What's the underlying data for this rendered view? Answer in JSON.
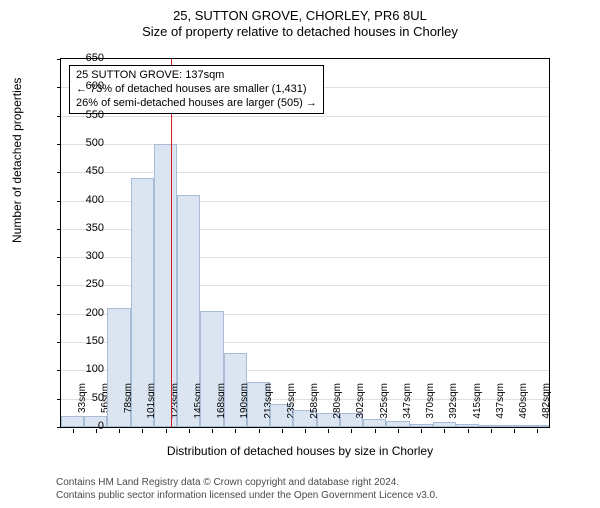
{
  "header": {
    "address": "25, SUTTON GROVE, CHORLEY, PR6 8UL",
    "subtitle": "Size of property relative to detached houses in Chorley"
  },
  "axes": {
    "ylabel": "Number of detached properties",
    "xlabel": "Distribution of detached houses by size in Chorley",
    "ymin": 0,
    "ymax": 650,
    "ytick_step": 50,
    "label_fontsize": 12,
    "tick_fontsize": 11
  },
  "chart": {
    "type": "histogram",
    "background_color": "#ffffff",
    "grid_color": "#e0e0e0",
    "bar_fill": "#dbe5f1",
    "bar_border": "#a8bdd5",
    "axis_color": "#000000",
    "categories": [
      "33sqm",
      "56sqm",
      "78sqm",
      "101sqm",
      "123sqm",
      "145sqm",
      "168sqm",
      "190sqm",
      "213sqm",
      "235sqm",
      "258sqm",
      "280sqm",
      "302sqm",
      "325sqm",
      "347sqm",
      "370sqm",
      "392sqm",
      "415sqm",
      "437sqm",
      "460sqm",
      "482sqm"
    ],
    "values": [
      20,
      20,
      210,
      440,
      500,
      410,
      205,
      130,
      80,
      40,
      30,
      25,
      25,
      15,
      10,
      5,
      8,
      5,
      3,
      3,
      3
    ],
    "bar_width_ratio": 1.0
  },
  "reference": {
    "color": "#d02020",
    "position_sqm": 137,
    "min_sqm": 33,
    "max_sqm": 493
  },
  "infobox": {
    "line1": "25 SUTTON GROVE: 137sqm",
    "line2": "← 73% of detached houses are smaller (1,431)",
    "line3": "26% of semi-detached houses are larger (505) →",
    "border_color": "#000000",
    "background": "#ffffff"
  },
  "footer": {
    "line1": "Contains HM Land Registry data © Crown copyright and database right 2024.",
    "line2": "Contains public sector information licensed under the Open Government Licence v3.0.",
    "color": "#4b4b4b"
  }
}
